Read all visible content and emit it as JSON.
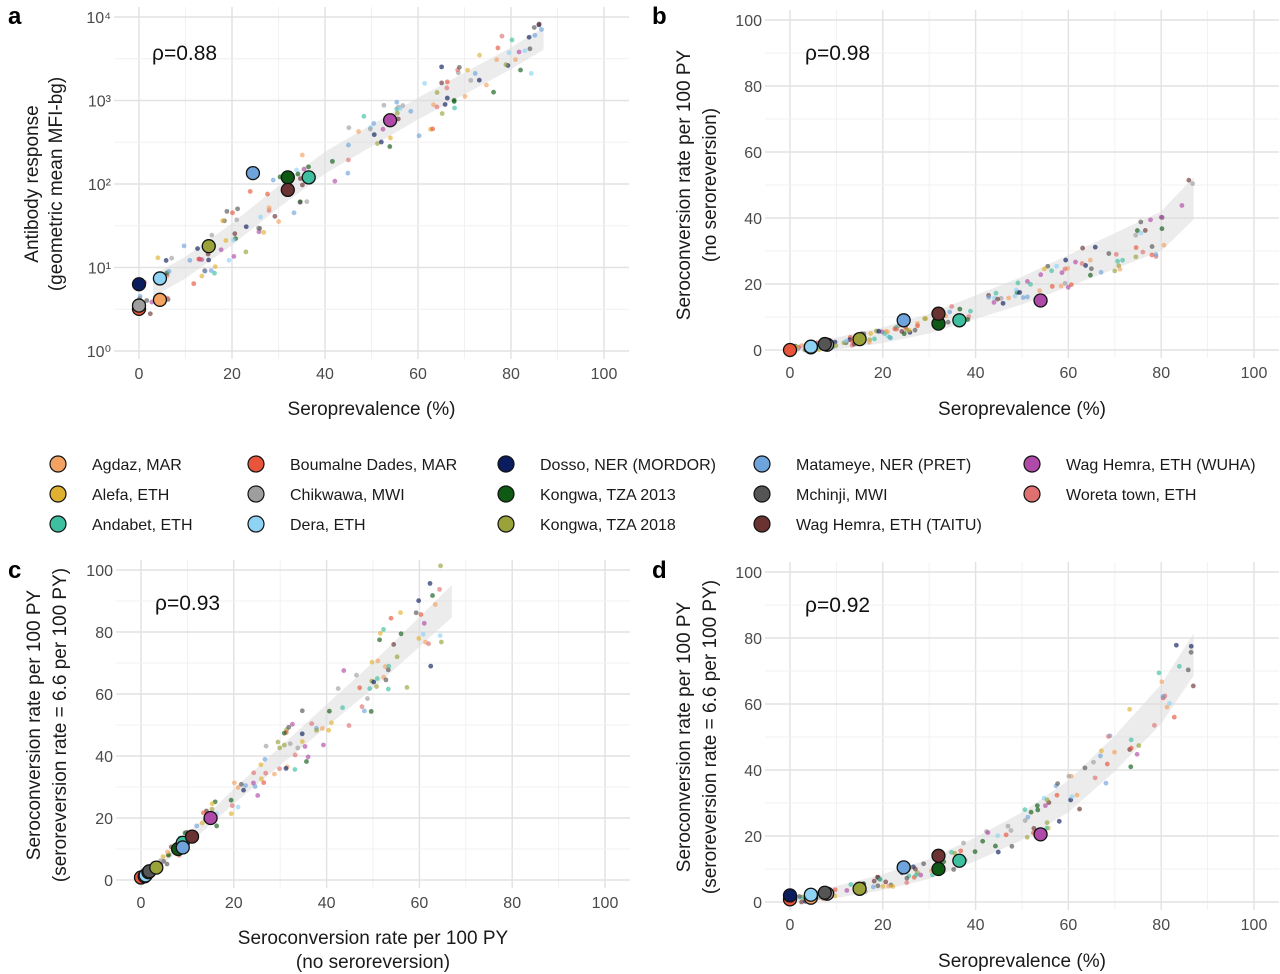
{
  "legend": [
    {
      "name": "Agdaz, MAR",
      "color": "#f4a261"
    },
    {
      "name": "Alefa, ETH",
      "color": "#e0b030"
    },
    {
      "name": "Andabet, ETH",
      "color": "#3dbfa0"
    },
    {
      "name": "Boumalne Dades, MAR",
      "color": "#e8553a"
    },
    {
      "name": "Chikwawa, MWI",
      "color": "#9e9e9e"
    },
    {
      "name": "Dera, ETH",
      "color": "#8fd3f4"
    },
    {
      "name": "Dosso, NER (MORDOR)",
      "color": "#0b1d5c"
    },
    {
      "name": "Kongwa, TZA 2013",
      "color": "#0e5a14"
    },
    {
      "name": "Kongwa, TZA 2018",
      "color": "#9aa23a"
    },
    {
      "name": "Matameye, NER (PRET)",
      "color": "#6fa3dc"
    },
    {
      "name": "Mchinji, MWI",
      "color": "#555555"
    },
    {
      "name": "Wag Hemra, ETH (TAITU)",
      "color": "#6b3232"
    },
    {
      "name": "Wag Hemra, ETH (WUHA)",
      "color": "#b04aa8"
    },
    {
      "name": "Woreta town, ETH",
      "color": "#e07070"
    }
  ],
  "chart_data": [
    {
      "panel": "a",
      "type": "scatter",
      "xlabel": "Seroprevalence (%)",
      "ylabel": [
        "Antibody response",
        "(geometric mean MFI-bg)"
      ],
      "xlim": [
        0,
        100
      ],
      "ylim": [
        1,
        10000
      ],
      "yscale": "log",
      "xticks": [
        "0",
        "20",
        "40",
        "60",
        "80",
        "100"
      ],
      "yticks": [
        "10⁰",
        "10¹",
        "10²",
        "10³",
        "10⁴"
      ],
      "annotation": "ρ=0.88",
      "points": [
        {
          "series": "Dosso, NER (MORDOR)",
          "x": 0,
          "y": 6.3
        },
        {
          "series": "Boumalne Dades, MAR",
          "x": 0,
          "y": 3.2
        },
        {
          "series": "Chikwawa, MWI",
          "x": 0,
          "y": 3.5
        },
        {
          "series": "Dera, ETH",
          "x": 4.5,
          "y": 7.4
        },
        {
          "series": "Agdaz, MAR",
          "x": 4.5,
          "y": 4.1
        },
        {
          "series": "Kongwa, TZA 2018",
          "x": 15,
          "y": 18
        },
        {
          "series": "Matameye, NER (PRET)",
          "x": 24.5,
          "y": 135
        },
        {
          "series": "Kongwa, TZA 2013",
          "x": 32,
          "y": 120
        },
        {
          "series": "Wag Hemra, ETH (TAITU)",
          "x": 32,
          "y": 85
        },
        {
          "series": "Andabet, ETH",
          "x": 36.5,
          "y": 120
        },
        {
          "series": "Wag Hemra, ETH (WUHA)",
          "x": 54,
          "y": 580
        }
      ],
      "fit": [
        [
          3,
          6
        ],
        [
          10,
          10
        ],
        [
          20,
          25
        ],
        [
          30,
          70
        ],
        [
          40,
          180
        ],
        [
          50,
          380
        ],
        [
          60,
          800
        ],
        [
          70,
          1600
        ],
        [
          80,
          3200
        ],
        [
          87,
          5500
        ]
      ]
    },
    {
      "panel": "b",
      "type": "scatter",
      "xlabel": "Seroprevalence (%)",
      "ylabel": [
        "Seroconversion rate per 100 PY",
        "(no seroreversion)"
      ],
      "xlim": [
        0,
        100
      ],
      "ylim": [
        0,
        100
      ],
      "xticks": [
        "0",
        "20",
        "40",
        "60",
        "80",
        "100"
      ],
      "yticks": [
        "0",
        "20",
        "40",
        "60",
        "80",
        "100"
      ],
      "annotation": "ρ=0.98",
      "points": [
        {
          "series": "Boumalne Dades, MAR",
          "x": 0,
          "y": 0
        },
        {
          "series": "Agdaz, MAR",
          "x": 4.5,
          "y": 0.8
        },
        {
          "series": "Dera, ETH",
          "x": 4.5,
          "y": 1
        },
        {
          "series": "Chikwawa, MWI",
          "x": 8,
          "y": 1.6
        },
        {
          "series": "Mchinji, MWI",
          "x": 7.5,
          "y": 1.8
        },
        {
          "series": "Kongwa, TZA 2018",
          "x": 15,
          "y": 3.3
        },
        {
          "series": "Matameye, NER (PRET)",
          "x": 24.5,
          "y": 9
        },
        {
          "series": "Kongwa, TZA 2013",
          "x": 32,
          "y": 8
        },
        {
          "series": "Wag Hemra, ETH (TAITU)",
          "x": 32,
          "y": 11
        },
        {
          "series": "Andabet, ETH",
          "x": 36.5,
          "y": 9
        },
        {
          "series": "Wag Hemra, ETH (WUHA)",
          "x": 54,
          "y": 15
        }
      ],
      "fit": [
        [
          0,
          0
        ],
        [
          10,
          2
        ],
        [
          20,
          4.5
        ],
        [
          30,
          8
        ],
        [
          40,
          13
        ],
        [
          50,
          18
        ],
        [
          60,
          24
        ],
        [
          70,
          30
        ],
        [
          80,
          36
        ],
        [
          87,
          46
        ]
      ]
    },
    {
      "panel": "c",
      "type": "scatter",
      "xlabel": [
        "Seroconversion rate per 100 PY",
        "(no seroreversion)"
      ],
      "ylabel": [
        "Seroconversion rate per 100 PY",
        "(seroreversion rate = 6.6 per 100 PY)"
      ],
      "xlim": [
        0,
        100
      ],
      "ylim": [
        0,
        100
      ],
      "xticks": [
        "0",
        "20",
        "40",
        "60",
        "80",
        "100"
      ],
      "yticks": [
        "0",
        "20",
        "40",
        "60",
        "80",
        "100"
      ],
      "annotation": "ρ=0.93",
      "points": [
        {
          "series": "Boumalne Dades, MAR",
          "x": 0,
          "y": 0.8
        },
        {
          "series": "Agdaz, MAR",
          "x": 0.8,
          "y": 1.2
        },
        {
          "series": "Dera, ETH",
          "x": 1,
          "y": 1.5
        },
        {
          "series": "Chikwawa, MWI",
          "x": 1.6,
          "y": 2.5
        },
        {
          "series": "Mchinji, MWI",
          "x": 1.8,
          "y": 2.8
        },
        {
          "series": "Kongwa, TZA 2018",
          "x": 3.3,
          "y": 4
        },
        {
          "series": "Kongwa, TZA 2013",
          "x": 8,
          "y": 10
        },
        {
          "series": "Andabet, ETH",
          "x": 9,
          "y": 12
        },
        {
          "series": "Matameye, NER (PRET)",
          "x": 9,
          "y": 10.5
        },
        {
          "series": "Wag Hemra, ETH (TAITU)",
          "x": 11,
          "y": 14
        },
        {
          "series": "Wag Hemra, ETH (WUHA)",
          "x": 15,
          "y": 20
        }
      ],
      "fit": [
        [
          0,
          0
        ],
        [
          10,
          13
        ],
        [
          20,
          27
        ],
        [
          30,
          40
        ],
        [
          40,
          53
        ],
        [
          50,
          66
        ],
        [
          60,
          80
        ],
        [
          67,
          90
        ]
      ]
    },
    {
      "panel": "d",
      "type": "scatter",
      "xlabel": "Seroprevalence (%)",
      "ylabel": [
        "Seroconversion rate per 100 PY",
        "(seroreversion rate = 6.6 per 100 PY)"
      ],
      "xlim": [
        0,
        100
      ],
      "ylim": [
        0,
        100
      ],
      "xticks": [
        "0",
        "20",
        "40",
        "60",
        "80",
        "100"
      ],
      "yticks": [
        "0",
        "20",
        "40",
        "60",
        "80",
        "100"
      ],
      "annotation": "ρ=0.92",
      "points": [
        {
          "series": "Boumalne Dades, MAR",
          "x": 0,
          "y": 0.8
        },
        {
          "series": "Dosso, NER (MORDOR)",
          "x": 0,
          "y": 2
        },
        {
          "series": "Agdaz, MAR",
          "x": 4.5,
          "y": 1.3
        },
        {
          "series": "Dera, ETH",
          "x": 4.5,
          "y": 2.2
        },
        {
          "series": "Chikwawa, MWI",
          "x": 8,
          "y": 2.5
        },
        {
          "series": "Mchinji, MWI",
          "x": 7.5,
          "y": 2.8
        },
        {
          "series": "Kongwa, TZA 2018",
          "x": 15,
          "y": 4
        },
        {
          "series": "Matameye, NER (PRET)",
          "x": 24.5,
          "y": 10.5
        },
        {
          "series": "Kongwa, TZA 2013",
          "x": 32,
          "y": 10
        },
        {
          "series": "Wag Hemra, ETH (TAITU)",
          "x": 32,
          "y": 14
        },
        {
          "series": "Andabet, ETH",
          "x": 36.5,
          "y": 12.5
        },
        {
          "series": "Wag Hemra, ETH (WUHA)",
          "x": 54,
          "y": 20.5
        }
      ],
      "fit": [
        [
          0,
          0
        ],
        [
          10,
          3
        ],
        [
          20,
          6
        ],
        [
          30,
          10
        ],
        [
          40,
          16
        ],
        [
          50,
          23
        ],
        [
          60,
          32
        ],
        [
          70,
          45
        ],
        [
          80,
          60
        ],
        [
          87,
          75
        ]
      ]
    }
  ]
}
